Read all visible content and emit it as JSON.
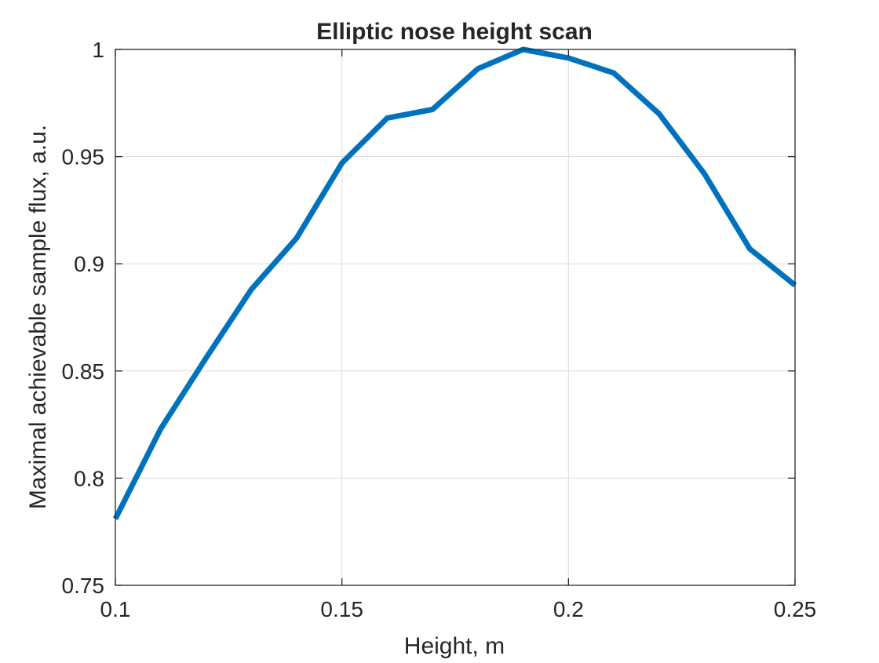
{
  "chart_data": {
    "type": "line",
    "title": "Elliptic nose height scan",
    "xlabel": "Height, m",
    "ylabel": "Maximal achievable sample flux, a.u.",
    "xlim": [
      0.1,
      0.25
    ],
    "ylim": [
      0.75,
      1.0
    ],
    "xticks": [
      0.1,
      0.15,
      0.2,
      0.25
    ],
    "xtick_labels": [
      "0.1",
      "0.15",
      "0.2",
      "0.25"
    ],
    "yticks": [
      0.75,
      0.8,
      0.85,
      0.9,
      0.95,
      1.0
    ],
    "ytick_labels": [
      "0.75",
      "0.8",
      "0.85",
      "0.9",
      "0.95",
      "1"
    ],
    "grid": true,
    "series": [
      {
        "color": "#0072BD",
        "x": [
          0.1,
          0.11,
          0.12,
          0.13,
          0.14,
          0.15,
          0.16,
          0.17,
          0.18,
          0.19,
          0.2,
          0.21,
          0.22,
          0.23,
          0.24,
          0.25
        ],
        "y": [
          0.781,
          0.823,
          0.856,
          0.888,
          0.912,
          0.947,
          0.968,
          0.972,
          0.991,
          1.0,
          0.996,
          0.989,
          0.97,
          0.942,
          0.907,
          0.89
        ]
      }
    ]
  },
  "colors": {
    "axis": "#262626",
    "grid": "#dcdcdc",
    "line": "#0072BD"
  }
}
